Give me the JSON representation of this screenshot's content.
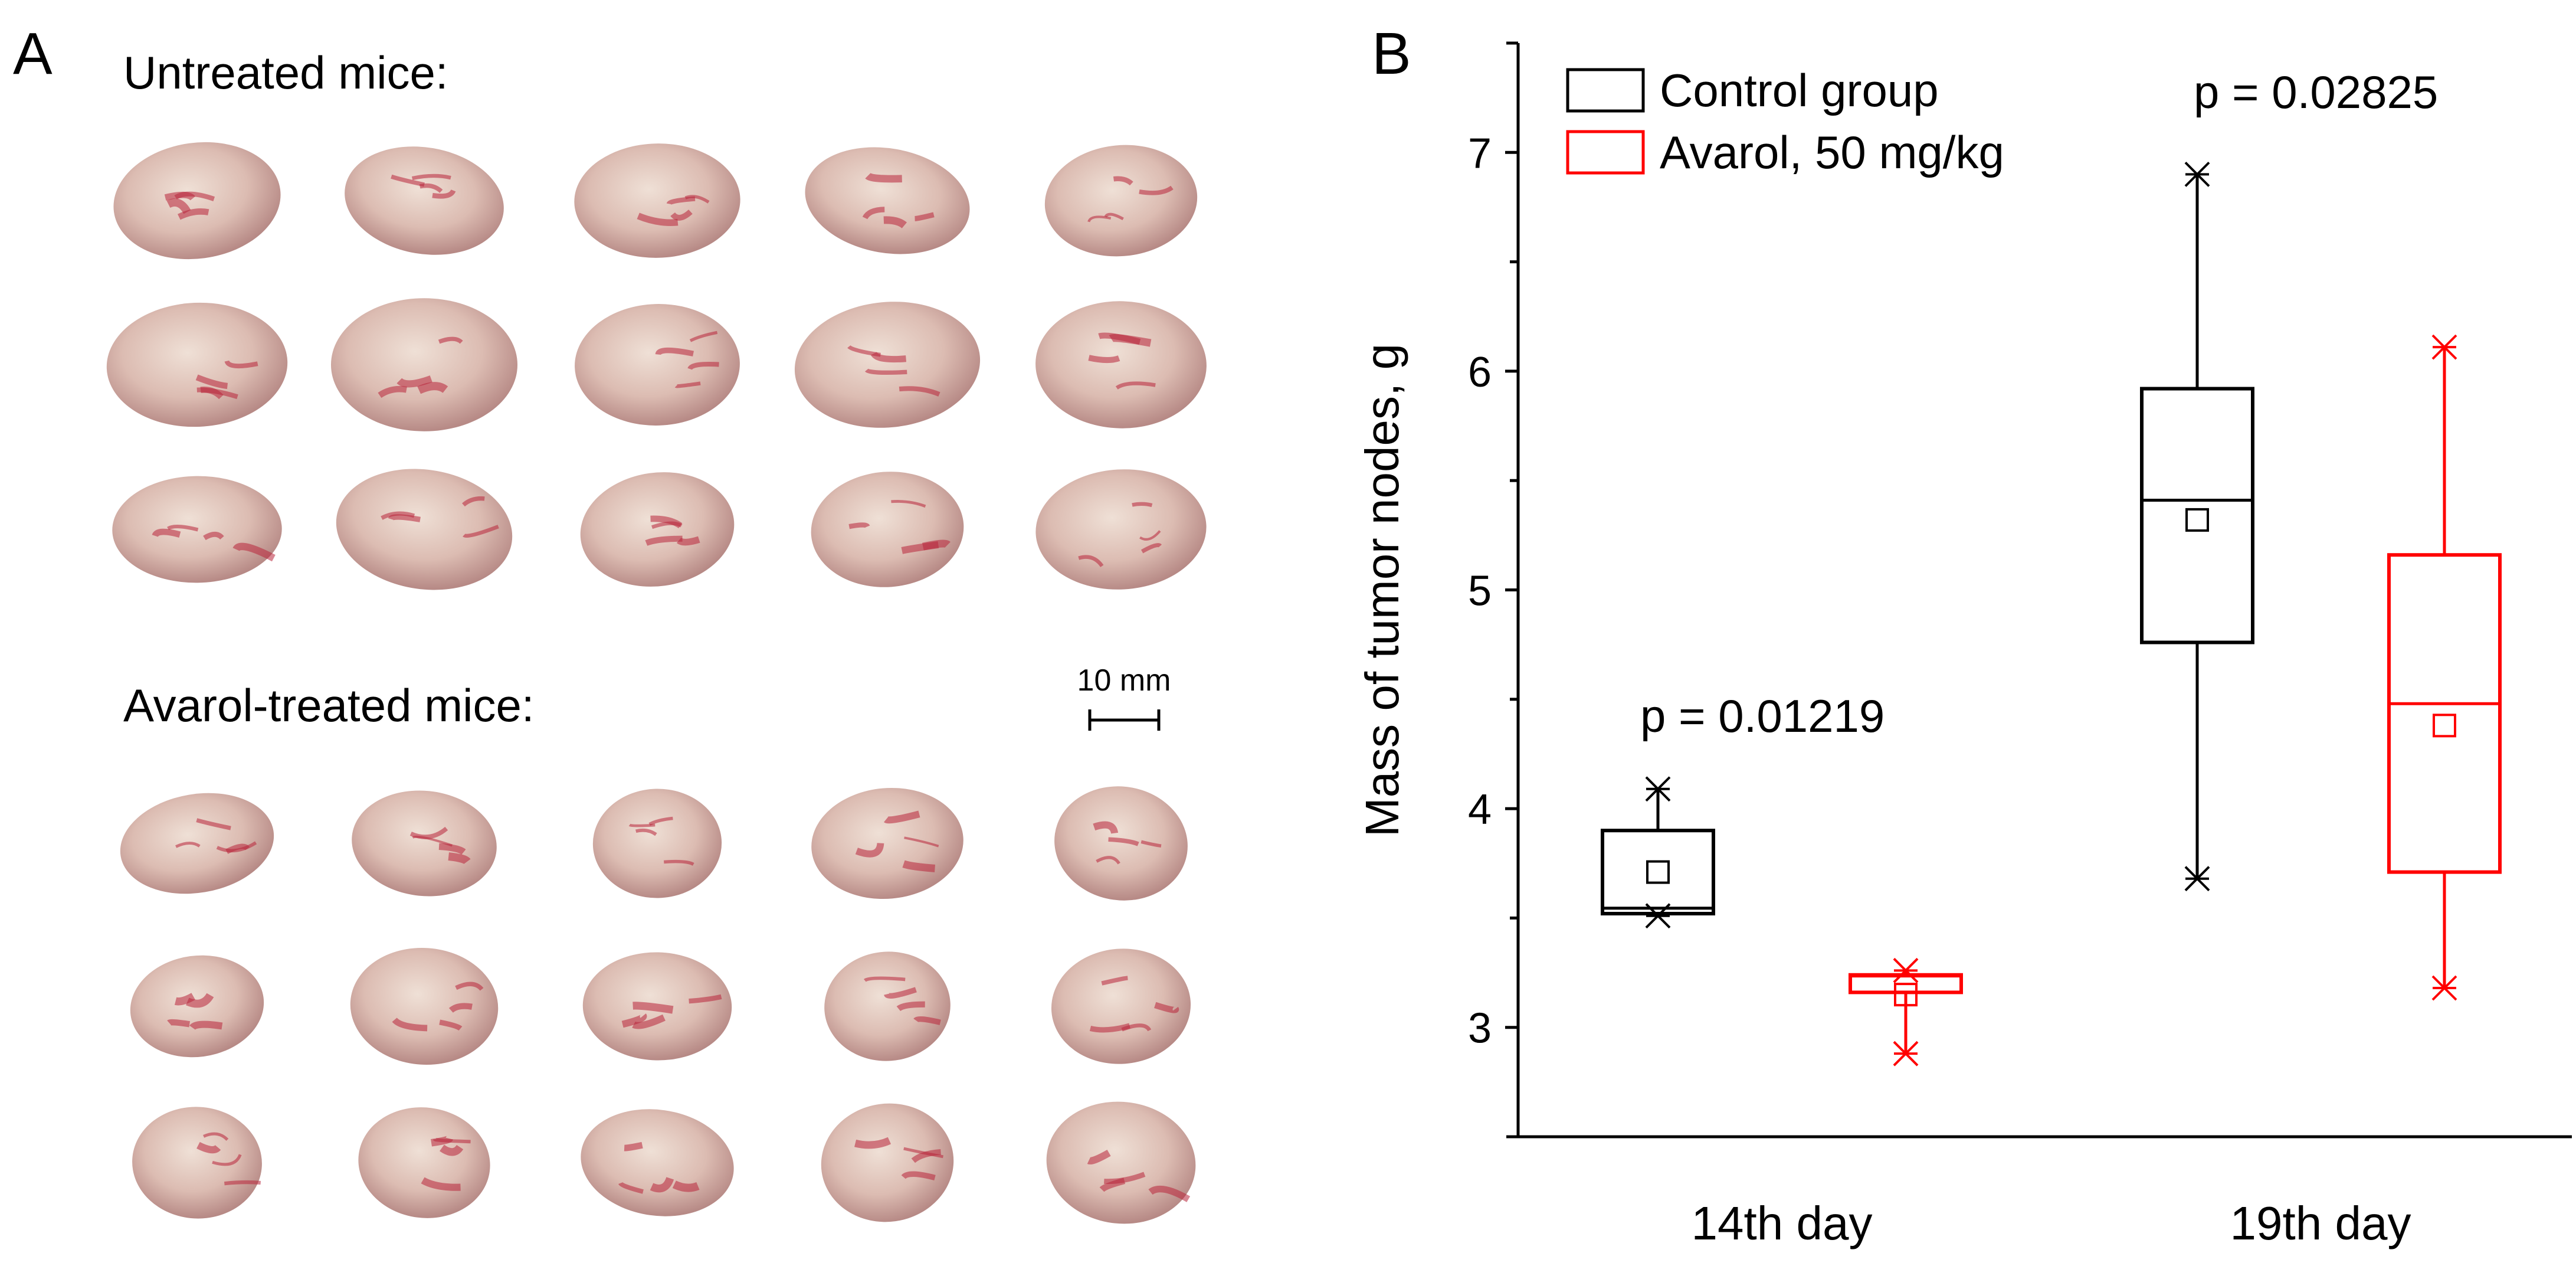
{
  "panel_a": {
    "label": "A",
    "untreated_title": "Untreated mice:",
    "treated_title": "Avarol-treated mice:",
    "scale_bar_label": "10 mm"
  },
  "chart_data": {
    "panel_label": "B",
    "type": "box",
    "ylabel": "Mass of tumor nodes, g",
    "xlabel": "",
    "ylim": [
      2.5,
      7.5
    ],
    "yticks": [
      3,
      4,
      5,
      6,
      7
    ],
    "categories": [
      "14th day",
      "19th day"
    ],
    "legend": {
      "placement": "top-left",
      "entries": [
        "Control group",
        "Avarol, 50 mg/kg"
      ]
    },
    "annotations": [
      "p = 0.01219",
      "p = 0.02825"
    ],
    "series": [
      {
        "name": "Control group",
        "color": "#000000",
        "boxes": [
          {
            "q1": 3.52,
            "median": 3.545,
            "q3": 3.9,
            "mean": 3.71,
            "min": 3.51,
            "max": 4.09
          },
          {
            "q1": 4.76,
            "median": 5.41,
            "q3": 5.92,
            "mean": 5.32,
            "min": 3.68,
            "max": 6.9
          }
        ]
      },
      {
        "name": "Avarol, 50 mg/kg",
        "color": "#ff0000",
        "boxes": [
          {
            "q1": 3.16,
            "median": 3.235,
            "q3": 3.24,
            "mean": 3.15,
            "min": 2.88,
            "max": 3.26
          },
          {
            "q1": 3.71,
            "median": 4.48,
            "q3": 5.16,
            "mean": 4.38,
            "min": 3.18,
            "max": 6.11
          }
        ]
      }
    ]
  }
}
